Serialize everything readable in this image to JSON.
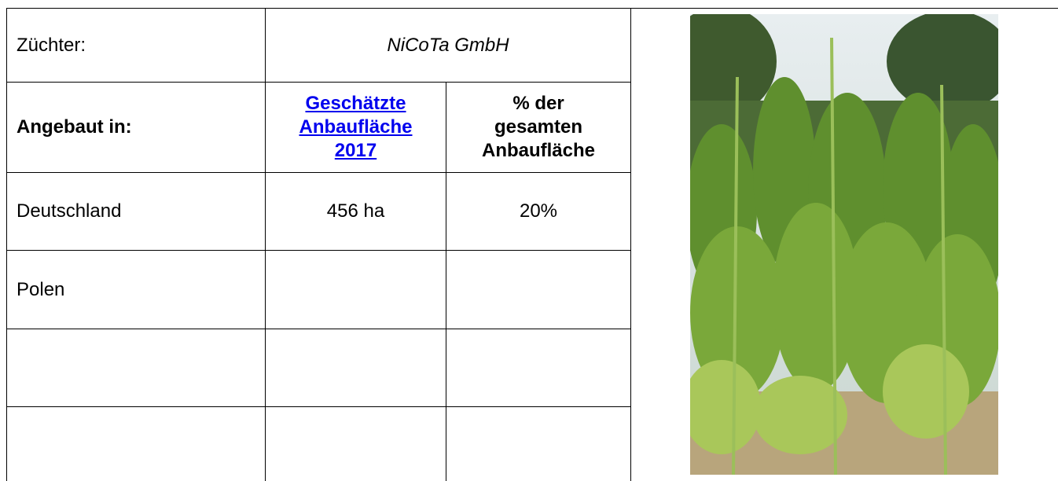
{
  "table": {
    "breeder_label": "Züchter:",
    "breeder": "NiCoTa GmbH",
    "header": [
      "Angebaut in:",
      "Geschätzte Anbaufläche 2017",
      "% der gesamten Anbaufläche"
    ],
    "rows": [
      [
        "Deutschland",
        "456 ha",
        "20%"
      ],
      [
        "Polen"
      ]
    ]
  }
}
